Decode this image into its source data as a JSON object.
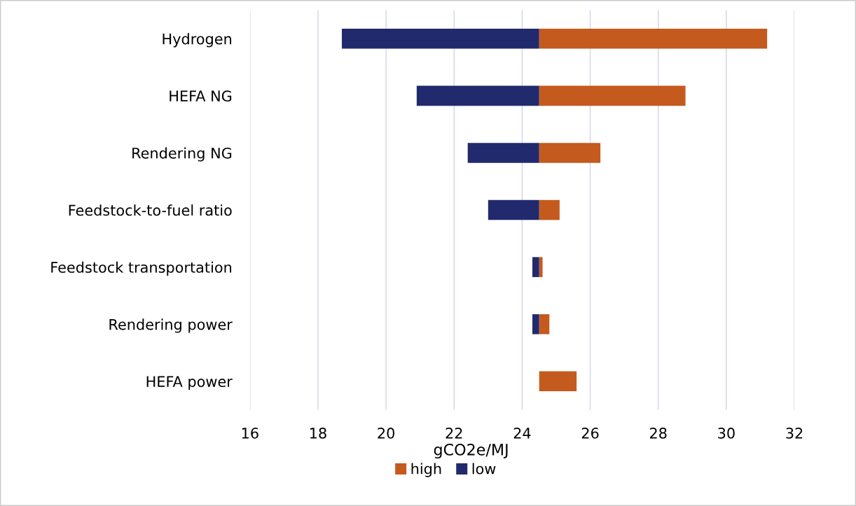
{
  "chart_data": {
    "type": "bar",
    "orientation": "horizontal",
    "xlabel": "gCO2e/MJ",
    "categories": [
      "Hydrogen",
      "HEFA NG",
      "Rendering NG",
      "Feedstock-to-fuel ratio",
      "Feedstock transportation",
      "Rendering power",
      "HEFA power"
    ],
    "series": [
      {
        "name": "high",
        "color": "#c55a1e",
        "base": [
          24.5,
          24.5,
          24.5,
          24.5,
          24.5,
          24.5,
          24.5
        ],
        "values": [
          6.7,
          4.3,
          1.8,
          0.6,
          0.1,
          0.3,
          1.1
        ]
      },
      {
        "name": "low",
        "color": "#222a6e",
        "base": [
          18.7,
          20.9,
          22.4,
          23.0,
          24.3,
          24.3,
          null
        ],
        "values": [
          5.8,
          3.6,
          2.1,
          1.5,
          0.2,
          0.2,
          null
        ]
      }
    ],
    "xlim": [
      16,
      32
    ],
    "xticks": [
      16,
      18,
      20,
      22,
      24,
      26,
      28,
      30,
      32
    ],
    "grid": "x",
    "legend": "bottom"
  }
}
